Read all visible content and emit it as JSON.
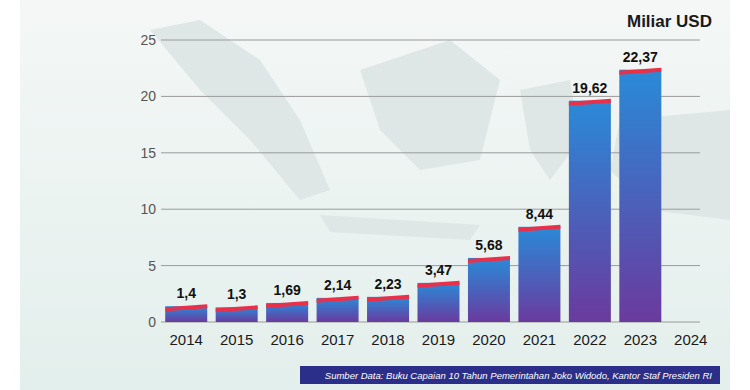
{
  "chart_data": {
    "type": "bar",
    "title": "Miliar USD",
    "source": "Sumber Data: Buku Capaian 10 Tahun Pemerintahan Joko Widodo, Kantor Staf Presiden RI",
    "categories": [
      "2014",
      "2015",
      "2016",
      "2017",
      "2018",
      "2019",
      "2020",
      "2021",
      "2022",
      "2023",
      "2024"
    ],
    "values": [
      1.4,
      1.3,
      1.69,
      2.14,
      2.23,
      3.47,
      5.68,
      8.44,
      19.62,
      22.37,
      null
    ],
    "value_labels": [
      "1,4",
      "1,3",
      "1,69",
      "2,14",
      "2,23",
      "3,47",
      "5,68",
      "8,44",
      "19,62",
      "22,37",
      null
    ],
    "data_labels": true,
    "color": "#2a8ad8",
    "ylim": [
      0,
      25
    ],
    "yticks": [
      0,
      5,
      10,
      15,
      20,
      25
    ],
    "grid": true
  }
}
